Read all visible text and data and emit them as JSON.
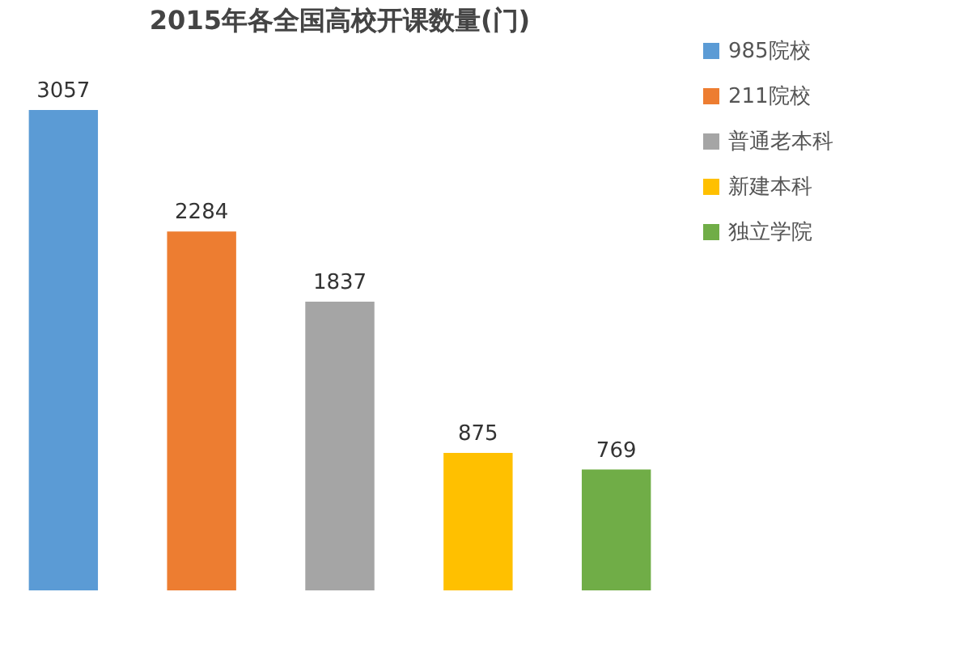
{
  "chart_data": {
    "type": "bar",
    "title": "2015年各全国高校开课数量(门)",
    "categories": [
      null,
      null,
      null,
      null,
      null
    ],
    "stacked": true,
    "series": [
      {
        "name": "985院校",
        "color": "#5b9bd5",
        "values": [
          3057,
          null,
          null,
          null,
          null
        ]
      },
      {
        "name": "211院校",
        "color": "#ed7d31",
        "values": [
          null,
          2284,
          null,
          null,
          null
        ]
      },
      {
        "name": "普通老本科",
        "color": "#a5a5a5",
        "values": [
          null,
          null,
          1837,
          null,
          null
        ]
      },
      {
        "name": "新建本科",
        "color": "#ffc000",
        "values": [
          null,
          null,
          null,
          875,
          null
        ]
      },
      {
        "name": "独立学院",
        "color": "#70ad47",
        "values": [
          null,
          null,
          null,
          null,
          769
        ]
      }
    ],
    "data_labels": true,
    "legend": "right",
    "grid": false
  }
}
